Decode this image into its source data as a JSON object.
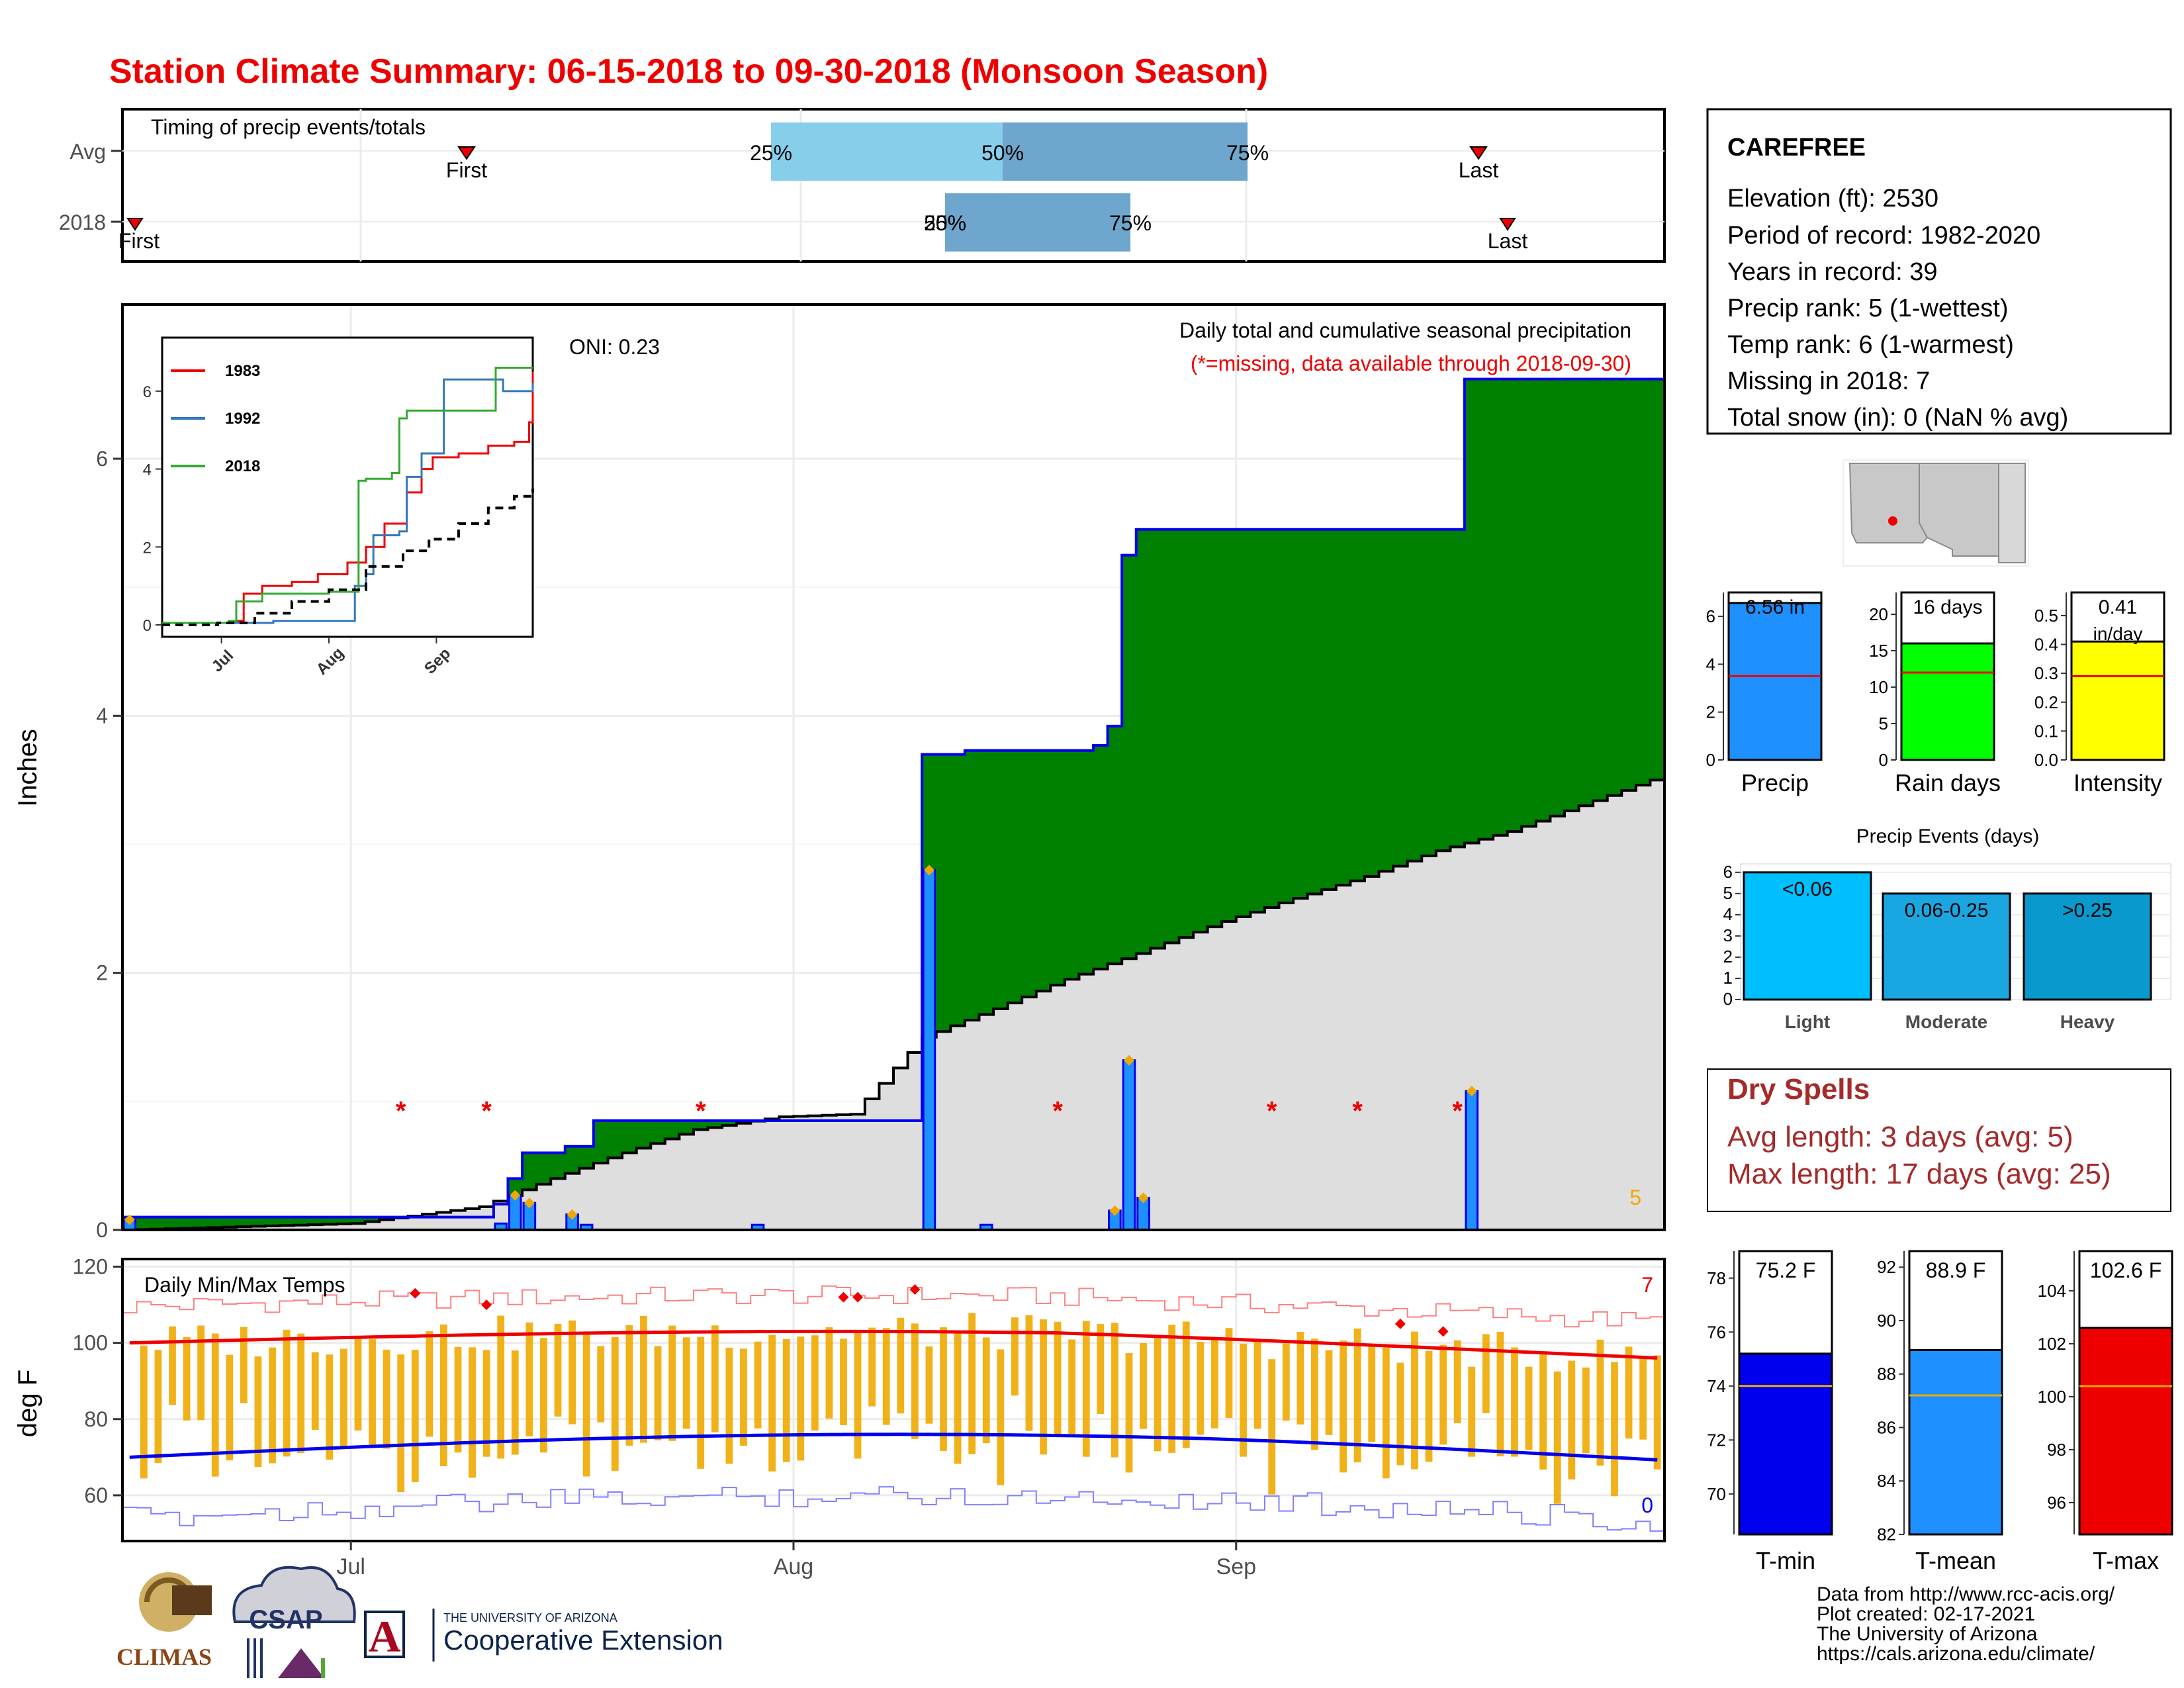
{
  "page": {
    "title": "Station Climate Summary: 06-15-2018 to 09-30-2018 (Monsoon Season)"
  },
  "colors": {
    "title_red": "#ee0000",
    "green": "#008000",
    "brown": "#8b5a00",
    "gray_fill": "#dedede",
    "bar_blue": "#1e90ff",
    "tmin_blue": "#0000ee",
    "tmax_red": "#ee0000",
    "orange": "#f0a800",
    "rain_green": "#00ff00",
    "intensity_yellow": "#ffff00",
    "event_light": "#00bfff",
    "event_mod": "#1aa6e0",
    "event_heavy": "#0a99cc",
    "dry_red": "#a52a2a",
    "timing_light": "#87ceeb",
    "timing_dark": "#6ea6cd"
  },
  "timing": {
    "title": "Timing of precip events/totals",
    "rows": [
      "Avg",
      "2018"
    ],
    "avg": {
      "first": "First",
      "last": "Last",
      "p25": "25%",
      "p50": "50%",
      "p75": "75%"
    },
    "y2018": {
      "first": "First",
      "last": "Last",
      "p25": "25%",
      "p50": "50%",
      "p75": "75%"
    }
  },
  "main": {
    "ylabel": "Inches",
    "yticks": [
      "0",
      "2",
      "4",
      "6"
    ],
    "oni": "ONI: 0.23",
    "legend_title": "Daily total and cumulative seasonal precipitation",
    "legend_note": "(*=missing, data available through 2018-09-30)",
    "corner_value": "5"
  },
  "inset": {
    "series_names": [
      "1983",
      "1992",
      "2018"
    ],
    "yticks": [
      "0",
      "2",
      "4",
      "6"
    ],
    "xticks": [
      "Jul",
      "Aug",
      "Sep"
    ]
  },
  "temps": {
    "title": "Daily Min/Max Temps",
    "ylabel": "deg F",
    "yticks": [
      "60",
      "80",
      "100",
      "120"
    ],
    "xticks": [
      "Jul",
      "Aug",
      "Sep"
    ],
    "count_top": "7",
    "count_bottom": "0"
  },
  "station": {
    "name": "CAREFREE",
    "lines": [
      "Elevation (ft): 2530",
      "Period of record: 1982-2020",
      "Years in record: 39",
      "Precip rank: 5 (1-wettest)",
      "Temp rank: 6 (1-warmest)",
      "Missing in 2018: 7",
      "Total snow (in): 0 (NaN % avg)"
    ]
  },
  "summary_bars": [
    {
      "label": "Precip",
      "value_text": "6.56 in",
      "value": 6.56,
      "avg": 3.5,
      "ymax": 7,
      "yticks": [
        "0",
        "2",
        "4",
        "6"
      ]
    },
    {
      "label": "Rain days",
      "value_text": "16 days",
      "value": 16,
      "avg": 12,
      "ymax": 23,
      "yticks": [
        "0",
        "5",
        "10",
        "15",
        "20"
      ]
    },
    {
      "label": "Intensity",
      "value_text": "0.41",
      "value_text2": "in/day",
      "value": 0.41,
      "avg": 0.29,
      "ymax": 0.58,
      "yticks": [
        "0.0",
        "0.1",
        "0.2",
        "0.3",
        "0.4",
        "0.5"
      ]
    }
  ],
  "events": {
    "title": "Precip Events (days)",
    "yticks": [
      "0",
      "1",
      "2",
      "3",
      "4",
      "5",
      "6"
    ],
    "bars": [
      {
        "label": "Light",
        "text": "<0.06",
        "value": 6
      },
      {
        "label": "Moderate",
        "text": "0.06-0.25",
        "value": 5
      },
      {
        "label": "Heavy",
        "text": ">0.25",
        "value": 5
      }
    ]
  },
  "dry_spells": {
    "title": "Dry Spells",
    "avg": "Avg length: 3 days (avg: 5)",
    "max": "Max length: 17 days (avg: 25)"
  },
  "temp_bars": [
    {
      "label": "T-min",
      "value_text": "75.2 F",
      "value": 75.2,
      "avg": 74.0,
      "ymin": 68.5,
      "ymax": 79,
      "yticks": [
        "70",
        "72",
        "74",
        "76",
        "78"
      ]
    },
    {
      "label": "T-mean",
      "value_text": "88.9 F",
      "value": 88.9,
      "avg": 87.2,
      "ymin": 82,
      "ymax": 92.6,
      "yticks": [
        "82",
        "84",
        "86",
        "88",
        "90",
        "92"
      ]
    },
    {
      "label": "T-max",
      "value_text": "102.6 F",
      "value": 102.6,
      "avg": 100.4,
      "ymin": 94.8,
      "ymax": 105.5,
      "yticks": [
        "96",
        "98",
        "100",
        "102",
        "104"
      ]
    }
  ],
  "footer": {
    "lines": [
      "Data from http://www.rcc-acis.org/",
      "Plot created: 02-17-2021",
      "The University of Arizona",
      "https://cals.arizona.edu/climate/"
    ],
    "logos": {
      "climas": "CLIMAS",
      "csap": "CSAP",
      "ua_top": "THE UNIVERSITY OF ARIZONA",
      "ua_bottom": "Cooperative Extension",
      "ua_letter": "A"
    }
  },
  "chart_data": [
    {
      "type": "area",
      "title": "Daily total and cumulative seasonal precipitation",
      "ylabel": "Inches",
      "xrange": [
        "2018-06-15",
        "2018-09-30"
      ],
      "ylim": [
        0,
        7.2
      ],
      "cumulative_2018": [
        [
          "2018-06-15",
          0.1
        ],
        [
          "2018-06-22",
          0.1
        ],
        [
          "2018-07-01",
          0.1
        ],
        [
          "2018-07-11",
          0.2
        ],
        [
          "2018-07-12",
          0.4
        ],
        [
          "2018-07-13",
          0.6
        ],
        [
          "2018-07-16",
          0.65
        ],
        [
          "2018-07-18",
          0.85
        ],
        [
          "2018-07-30",
          0.85
        ],
        [
          "2018-08-09",
          0.85
        ],
        [
          "2018-08-10",
          3.7
        ],
        [
          "2018-08-13",
          3.73
        ],
        [
          "2018-08-22",
          3.77
        ],
        [
          "2018-08-23",
          3.92
        ],
        [
          "2018-08-24",
          5.25
        ],
        [
          "2018-08-25",
          5.45
        ],
        [
          "2018-09-16",
          5.45
        ],
        [
          "2018-09-17",
          6.62
        ],
        [
          "2018-09-30",
          6.62
        ]
      ],
      "average_cumulative": [
        [
          "2018-06-15",
          0.0
        ],
        [
          "2018-07-01",
          0.05
        ],
        [
          "2018-07-10",
          0.18
        ],
        [
          "2018-07-15",
          0.4
        ],
        [
          "2018-07-20",
          0.6
        ],
        [
          "2018-07-25",
          0.78
        ],
        [
          "2018-07-31",
          0.88
        ],
        [
          "2018-08-05",
          0.9
        ],
        [
          "2018-08-10",
          1.5
        ],
        [
          "2018-08-15",
          1.72
        ],
        [
          "2018-08-20",
          1.95
        ],
        [
          "2018-08-25",
          2.15
        ],
        [
          "2018-08-31",
          2.4
        ],
        [
          "2018-09-05",
          2.58
        ],
        [
          "2018-09-10",
          2.75
        ],
        [
          "2018-09-15",
          2.95
        ],
        [
          "2018-09-20",
          3.1
        ],
        [
          "2018-09-25",
          3.3
        ],
        [
          "2018-09-30",
          3.5
        ]
      ],
      "daily_2018": [
        [
          "2018-06-15",
          0.08
        ],
        [
          "2018-07-11",
          0.05
        ],
        [
          "2018-07-12",
          0.27
        ],
        [
          "2018-07-13",
          0.21
        ],
        [
          "2018-07-16",
          0.12
        ],
        [
          "2018-07-17",
          0.04
        ],
        [
          "2018-07-29",
          0.04
        ],
        [
          "2018-08-10",
          2.8
        ],
        [
          "2018-08-14",
          0.04
        ],
        [
          "2018-08-23",
          0.15
        ],
        [
          "2018-08-24",
          1.32
        ],
        [
          "2018-08-25",
          0.25
        ],
        [
          "2018-09-17",
          1.08
        ]
      ],
      "missing_dates": [
        "2018-07-04",
        "2018-07-10",
        "2018-07-25",
        "2018-08-19",
        "2018-09-03",
        "2018-09-09",
        "2018-09-16"
      ]
    },
    {
      "type": "line",
      "title": "",
      "series": [
        {
          "name": "1983",
          "color": "#ee0000"
        },
        {
          "name": "1992",
          "color": "#3377bb"
        },
        {
          "name": "2018",
          "color": "#33aa33"
        }
      ],
      "ylim": [
        0,
        7
      ]
    },
    {
      "type": "line",
      "title": "Daily Min/Max Temps",
      "ylabel": "deg F",
      "ylim": [
        48,
        122
      ]
    }
  ]
}
